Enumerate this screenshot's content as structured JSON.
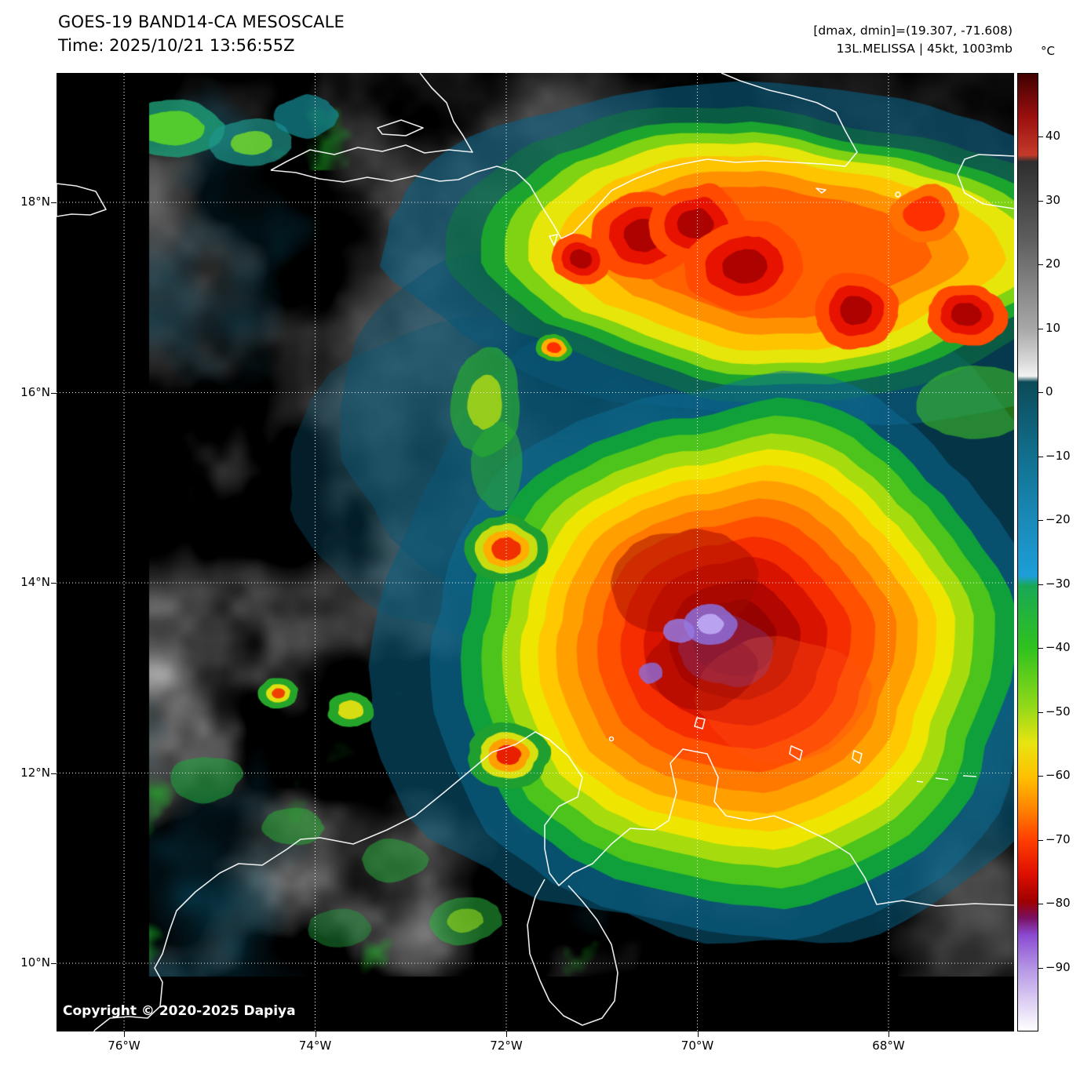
{
  "header": {
    "title": "GOES-19 BAND14-CA MESOSCALE",
    "time": "Time: 2025/10/21 13:56:55Z",
    "metrics": "[dmax, dmin]=(19.307, -71.608)",
    "storm": "13L.MELISSA | 45kt, 1003mb"
  },
  "colorbar": {
    "unit": "°C",
    "domain": [
      50,
      -100
    ],
    "ticks": [
      40,
      30,
      20,
      10,
      0,
      -10,
      -20,
      -30,
      -40,
      -50,
      -60,
      -70,
      -80,
      -90
    ],
    "stops": [
      {
        "p": 0.0,
        "c": "#3f0000"
      },
      {
        "p": 0.045,
        "c": "#9b0f0f"
      },
      {
        "p": 0.085,
        "c": "#c43a2a"
      },
      {
        "p": 0.092,
        "c": "#2e2e2e"
      },
      {
        "p": 0.175,
        "c": "#5f5f5f"
      },
      {
        "p": 0.267,
        "c": "#a8a8a8"
      },
      {
        "p": 0.3,
        "c": "#d8d8d8"
      },
      {
        "p": 0.316,
        "c": "#f2f2f2"
      },
      {
        "p": 0.322,
        "c": "#0c4b58"
      },
      {
        "p": 0.4,
        "c": "#11708e"
      },
      {
        "p": 0.467,
        "c": "#1a8ab8"
      },
      {
        "p": 0.525,
        "c": "#1d9ed8"
      },
      {
        "p": 0.535,
        "c": "#18a855"
      },
      {
        "p": 0.6,
        "c": "#2fc21e"
      },
      {
        "p": 0.66,
        "c": "#90d81a"
      },
      {
        "p": 0.7,
        "c": "#e8e410"
      },
      {
        "p": 0.735,
        "c": "#ffc000"
      },
      {
        "p": 0.77,
        "c": "#ff8000"
      },
      {
        "p": 0.8,
        "c": "#ff3f00"
      },
      {
        "p": 0.835,
        "c": "#e01000"
      },
      {
        "p": 0.865,
        "c": "#9e0000"
      },
      {
        "p": 0.882,
        "c": "#7a1060"
      },
      {
        "p": 0.9,
        "c": "#8a4ad0"
      },
      {
        "p": 0.933,
        "c": "#b292e4"
      },
      {
        "p": 0.966,
        "c": "#d9c9f2"
      },
      {
        "p": 1.0,
        "c": "#ffffff"
      }
    ]
  },
  "axes": {
    "lat_ticks": [
      {
        "label": "18°N",
        "deg": 18
      },
      {
        "label": "16°N",
        "deg": 16
      },
      {
        "label": "14°N",
        "deg": 14
      },
      {
        "label": "12°N",
        "deg": 12
      },
      {
        "label": "10°N",
        "deg": 10
      }
    ],
    "lon_ticks": [
      {
        "label": "76°W",
        "deg": -76
      },
      {
        "label": "74°W",
        "deg": -74
      },
      {
        "label": "72°W",
        "deg": -72
      },
      {
        "label": "70°W",
        "deg": -70
      },
      {
        "label": "68°W",
        "deg": -68
      }
    ]
  },
  "map": {
    "copyright": "Copyright © 2020-2025 Dapiya"
  }
}
